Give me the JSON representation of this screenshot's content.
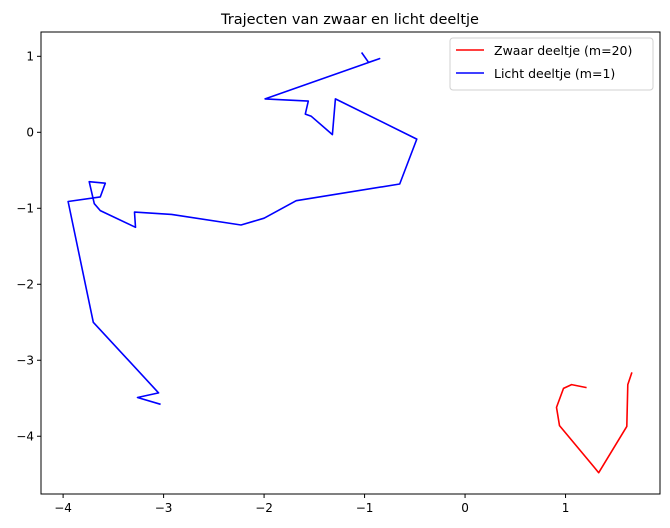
{
  "chart_data": {
    "type": "line",
    "title": "Trajecten van zwaar en licht deeltje",
    "xlabel": "",
    "ylabel": "",
    "xlim": [
      -4.22,
      1.94
    ],
    "ylim": [
      -4.76,
      1.32
    ],
    "xticks": [
      -4,
      -3,
      -2,
      -1,
      0,
      1
    ],
    "yticks": [
      1,
      0,
      -1,
      -2,
      -3,
      -4
    ],
    "xtick_labels": [
      "−4",
      "−3",
      "−2",
      "−1",
      "0",
      "1"
    ],
    "ytick_labels": [
      "1",
      "0",
      "−1",
      "−2",
      "−3",
      "−4"
    ],
    "grid": false,
    "legend_position": "top-right",
    "series": [
      {
        "name": "Zwaar deeltje (m=20)",
        "color": "#ff0000",
        "x": [
          1.21,
          1.06,
          0.98,
          0.91,
          0.94,
          1.28,
          1.33,
          1.61,
          1.62,
          1.66
        ],
        "y": [
          -3.36,
          -3.32,
          -3.37,
          -3.62,
          -3.86,
          -4.4,
          -4.48,
          -3.87,
          -3.32,
          -3.16
        ]
      },
      {
        "name": "Licht deeltje (m=1)",
        "color": "#0000ff",
        "x": [
          -1.03,
          -0.96,
          -0.85,
          -1.99,
          -1.56,
          -1.59,
          -1.53,
          -1.32,
          -1.29,
          -0.48,
          -0.65,
          -1.68,
          -2.0,
          -2.23,
          -2.92,
          -3.29,
          -3.28,
          -3.63,
          -3.69,
          -3.74,
          -3.58,
          -3.63,
          -3.95,
          -3.7,
          -3.05,
          -3.26,
          -3.03
        ],
        "y": [
          1.05,
          0.92,
          0.97,
          0.44,
          0.41,
          0.24,
          0.21,
          -0.03,
          0.44,
          -0.09,
          -0.68,
          -0.9,
          -1.13,
          -1.22,
          -1.08,
          -1.05,
          -1.25,
          -1.03,
          -0.94,
          -0.65,
          -0.67,
          -0.85,
          -0.91,
          -2.5,
          -3.43,
          -3.49,
          -3.58
        ]
      }
    ]
  }
}
